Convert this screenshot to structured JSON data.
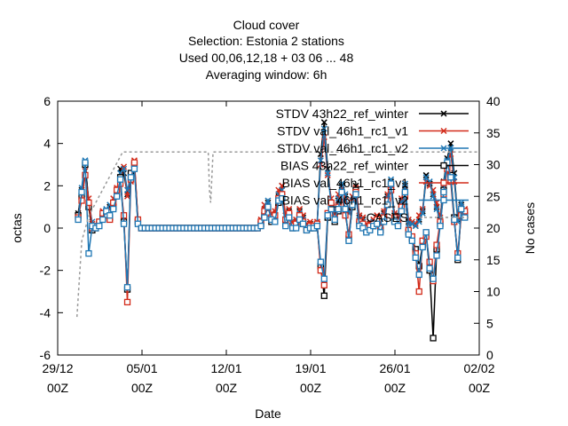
{
  "chart_data": {
    "type": "line",
    "title_lines": [
      "Cloud cover",
      "Selection: Estonia      2 stations",
      "Used  00,06,12,18  + 03 06 ... 48",
      "Averaging window:  6h"
    ],
    "xlabel": "Date",
    "ylabel": "octas",
    "y2label": "No cases",
    "xlim": [
      0,
      35
    ],
    "ylim": [
      -6,
      6
    ],
    "y2lim": [
      0,
      40
    ],
    "x_ticks": [
      {
        "x": 0,
        "line1": "29/12",
        "line2": "00Z"
      },
      {
        "x": 7,
        "line1": "05/01",
        "line2": "00Z"
      },
      {
        "x": 14,
        "line1": "12/01",
        "line2": "00Z"
      },
      {
        "x": 21,
        "line1": "19/01",
        "line2": "00Z"
      },
      {
        "x": 28,
        "line1": "26/01",
        "line2": "00Z"
      },
      {
        "x": 35,
        "line1": "02/02",
        "line2": "00Z"
      }
    ],
    "y_ticks": [
      "-6",
      "-4",
      "-2",
      "0",
      "2",
      "4",
      "6"
    ],
    "y2_ticks": [
      "0",
      "5",
      "10",
      "15",
      "20",
      "25",
      "30",
      "35",
      "40"
    ],
    "legend_position": "top-right",
    "series": [
      {
        "name": "STDV 43h22_ref_winter",
        "color": "#000000",
        "marker": "x",
        "y": [
          0.7,
          1.8,
          3.1,
          1.2,
          0.1,
          0.0,
          0.2,
          0.5,
          0.8,
          1.0,
          1.2,
          1.6,
          2.8,
          2.6,
          1.6,
          2.5,
          3.0,
          0.3,
          0.0,
          0.0,
          0.0,
          0.0,
          0.0,
          0.0,
          0.0,
          0.0,
          0.0,
          0.0,
          0.0,
          0.0,
          0.0,
          0.0,
          0.0,
          0.0,
          0.0,
          0.0,
          0.0,
          0.0,
          0.0,
          0.0,
          0.0,
          0.0,
          0.0,
          0.0,
          0.0,
          0.0,
          0.0,
          0.0,
          0.0,
          0.0,
          0.0,
          0.0,
          0.3,
          0.9,
          1.2,
          0.5,
          0.6,
          1.5,
          2.0,
          0.4,
          0.8,
          0.2,
          0.3,
          0.8,
          0.5,
          0.1,
          0.2,
          0.1,
          0.2,
          3.5,
          5.0,
          2.8,
          1.2,
          0.6,
          1.3,
          2.0,
          1.5,
          0.8,
          1.2,
          2.0,
          0.5,
          0.4,
          0.1,
          0.2,
          0.3,
          0.5,
          0.1,
          0.7,
          1.5,
          2.2,
          0.6,
          0.5,
          1.3,
          2.0,
          0.3,
          0.2,
          0.1,
          0.4,
          0.8,
          2.5,
          2.1,
          1.6,
          1.0,
          0.4,
          2.2,
          3.3,
          4.0,
          2.6,
          0.4,
          1.1,
          0.8
        ]
      },
      {
        "name": "STDV val_46h1_rc1_v1",
        "color": "#d22b1a",
        "marker": "x",
        "y": [
          0.6,
          1.6,
          2.7,
          1.4,
          0.2,
          0.1,
          0.3,
          0.8,
          0.7,
          0.9,
          1.4,
          1.9,
          2.4,
          2.9,
          1.5,
          2.2,
          3.2,
          0.4,
          0.0,
          0.0,
          0.0,
          0.0,
          0.0,
          0.0,
          0.0,
          0.0,
          0.0,
          0.0,
          0.0,
          0.0,
          0.0,
          0.0,
          0.0,
          0.0,
          0.0,
          0.0,
          0.0,
          0.0,
          0.0,
          0.0,
          0.0,
          0.0,
          0.0,
          0.0,
          0.0,
          0.0,
          0.0,
          0.0,
          0.0,
          0.0,
          0.0,
          0.0,
          0.4,
          1.1,
          1.0,
          0.7,
          0.8,
          1.8,
          2.0,
          0.6,
          0.9,
          0.3,
          0.4,
          0.9,
          0.6,
          0.2,
          0.3,
          0.2,
          0.3,
          3.0,
          4.3,
          2.5,
          1.4,
          0.8,
          1.6,
          1.9,
          1.3,
          0.9,
          1.5,
          1.9,
          0.6,
          0.5,
          0.2,
          0.3,
          0.4,
          0.6,
          0.2,
          0.8,
          1.6,
          2.0,
          0.7,
          0.6,
          1.4,
          1.9,
          0.4,
          0.3,
          0.2,
          0.6,
          0.9,
          2.2,
          2.0,
          1.8,
          1.2,
          0.5,
          2.0,
          3.0,
          3.5,
          2.2,
          0.5,
          1.0,
          0.9
        ]
      },
      {
        "name": "STDV val_46h1_rc1_v2",
        "color": "#1f77b4",
        "marker": "x",
        "y": [
          0.5,
          1.9,
          3.2,
          1.1,
          0.3,
          0.1,
          0.2,
          0.6,
          0.9,
          1.1,
          1.0,
          1.7,
          2.6,
          2.8,
          1.8,
          2.4,
          2.9,
          0.2,
          0.0,
          0.0,
          0.0,
          0.0,
          0.0,
          0.0,
          0.0,
          0.0,
          0.0,
          0.0,
          0.0,
          0.0,
          0.0,
          0.0,
          0.0,
          0.0,
          0.0,
          0.0,
          0.0,
          0.0,
          0.0,
          0.0,
          0.0,
          0.0,
          0.0,
          0.0,
          0.0,
          0.0,
          0.0,
          0.0,
          0.0,
          0.0,
          0.0,
          0.0,
          0.2,
          0.8,
          1.3,
          0.6,
          0.5,
          1.6,
          1.8,
          0.3,
          0.7,
          0.1,
          0.2,
          0.7,
          0.4,
          0.1,
          0.1,
          0.1,
          0.2,
          3.2,
          4.7,
          2.6,
          1.1,
          0.7,
          1.4,
          2.1,
          1.6,
          0.7,
          1.3,
          1.8,
          0.4,
          0.3,
          0.1,
          0.1,
          0.3,
          0.4,
          0.1,
          0.6,
          1.4,
          2.3,
          0.5,
          0.4,
          1.2,
          2.1,
          0.2,
          0.2,
          0.1,
          0.3,
          0.7,
          2.4,
          2.2,
          1.5,
          0.9,
          0.3,
          2.1,
          3.2,
          3.8,
          2.4,
          0.3,
          1.2,
          0.7
        ]
      },
      {
        "name": "BIAS 43h22_ref_winter",
        "color": "#000000",
        "marker": "square",
        "y": [
          0.6,
          1.5,
          3.0,
          1.0,
          -0.1,
          0.0,
          0.2,
          0.5,
          0.7,
          0.5,
          1.0,
          1.6,
          2.4,
          0.3,
          -2.9,
          2.6,
          3.0,
          0.3,
          0.0,
          0.0,
          0.0,
          0.0,
          0.0,
          0.0,
          0.0,
          0.0,
          0.0,
          0.0,
          0.0,
          0.0,
          0.0,
          0.0,
          0.0,
          0.0,
          0.0,
          0.0,
          0.0,
          0.0,
          0.0,
          0.0,
          0.0,
          0.0,
          0.0,
          0.0,
          0.0,
          0.0,
          0.0,
          0.0,
          0.0,
          0.0,
          0.0,
          0.0,
          0.2,
          0.6,
          0.9,
          0.3,
          0.4,
          1.2,
          1.5,
          0.2,
          0.6,
          0.0,
          0.1,
          0.5,
          0.2,
          -0.1,
          0.0,
          0.0,
          0.1,
          -1.8,
          -3.2,
          0.5,
          1.0,
          0.3,
          0.8,
          1.6,
          0.8,
          -0.5,
          1.0,
          1.8,
          0.2,
          0.1,
          -0.1,
          0.0,
          0.1,
          0.3,
          -0.1,
          0.4,
          1.2,
          2.0,
          0.4,
          0.2,
          0.9,
          1.6,
          -0.2,
          -0.5,
          -1.0,
          -1.8,
          -0.8,
          -0.3,
          -2.0,
          -5.2,
          -1.0,
          0.2,
          1.8,
          3.0,
          2.5,
          0.5,
          -1.5,
          0.8,
          0.6
        ]
      },
      {
        "name": "BIAS val_46h1_rc1_v1",
        "color": "#d22b1a",
        "marker": "square",
        "y": [
          0.5,
          1.3,
          2.5,
          1.2,
          0.0,
          0.1,
          0.3,
          0.7,
          0.6,
          0.4,
          1.2,
          1.8,
          2.1,
          0.6,
          -3.5,
          2.3,
          3.1,
          0.4,
          0.0,
          0.0,
          0.0,
          0.0,
          0.0,
          0.0,
          0.0,
          0.0,
          0.0,
          0.0,
          0.0,
          0.0,
          0.0,
          0.0,
          0.0,
          0.0,
          0.0,
          0.0,
          0.0,
          0.0,
          0.0,
          0.0,
          0.0,
          0.0,
          0.0,
          0.0,
          0.0,
          0.0,
          0.0,
          0.0,
          0.0,
          0.0,
          0.0,
          0.0,
          0.3,
          0.8,
          0.7,
          0.5,
          0.6,
          1.4,
          1.6,
          0.4,
          0.7,
          0.1,
          0.2,
          0.6,
          0.3,
          0.0,
          0.1,
          0.1,
          0.2,
          -2.0,
          -2.7,
          0.7,
          1.2,
          0.5,
          1.0,
          1.5,
          0.6,
          -0.3,
          1.2,
          1.7,
          0.3,
          0.2,
          0.0,
          0.1,
          0.2,
          0.4,
          0.0,
          0.5,
          1.3,
          1.8,
          0.5,
          0.3,
          1.0,
          1.5,
          -0.1,
          -0.4,
          -1.2,
          -3.0,
          -0.6,
          -0.4,
          -1.6,
          -2.5,
          -0.8,
          0.3,
          1.6,
          2.8,
          2.2,
          0.3,
          -1.2,
          0.6,
          0.8
        ]
      },
      {
        "name": "BIAS val_46h1_rc1_v2",
        "color": "#1f77b4",
        "marker": "square",
        "y": [
          0.4,
          1.7,
          3.1,
          -1.2,
          0.1,
          0.0,
          0.1,
          0.4,
          0.8,
          0.6,
          0.9,
          1.5,
          2.3,
          0.2,
          -2.8,
          2.4,
          2.8,
          0.2,
          0.0,
          0.0,
          0.0,
          0.0,
          0.0,
          0.0,
          0.0,
          0.0,
          0.0,
          0.0,
          0.0,
          0.0,
          0.0,
          0.0,
          0.0,
          0.0,
          0.0,
          0.0,
          0.0,
          0.0,
          0.0,
          0.0,
          0.0,
          0.0,
          0.0,
          0.0,
          0.0,
          0.0,
          0.0,
          0.0,
          0.0,
          0.0,
          0.0,
          0.0,
          0.1,
          0.5,
          1.0,
          0.4,
          0.3,
          1.3,
          1.4,
          0.1,
          0.5,
          0.0,
          0.0,
          0.4,
          0.2,
          -0.1,
          0.0,
          0.0,
          0.1,
          -1.6,
          -2.4,
          0.6,
          0.9,
          0.4,
          0.9,
          1.7,
          0.9,
          -0.6,
          1.1,
          1.6,
          0.1,
          0.0,
          -0.2,
          -0.1,
          0.1,
          0.2,
          -0.2,
          0.3,
          1.1,
          2.1,
          0.3,
          0.1,
          0.8,
          1.7,
          -0.3,
          -0.6,
          -1.4,
          -2.2,
          -0.9,
          -0.2,
          -1.9,
          -2.4,
          -1.3,
          0.1,
          1.7,
          3.1,
          2.4,
          0.4,
          -1.4,
          0.9,
          0.5
        ]
      },
      {
        "name": "CASES",
        "color": "#999999",
        "axis": "y2",
        "marker": "none",
        "dashed": true,
        "x": [
          1.6,
          2.0,
          2.6,
          5.4,
          12.5,
          12.6,
          12.7,
          12.9,
          13.0,
          13.1,
          13.2,
          22.0,
          22.2,
          35.0
        ],
        "y": [
          6,
          18,
          22,
          32,
          32,
          26,
          24,
          32,
          32,
          32,
          32,
          32,
          32,
          32
        ]
      }
    ]
  }
}
